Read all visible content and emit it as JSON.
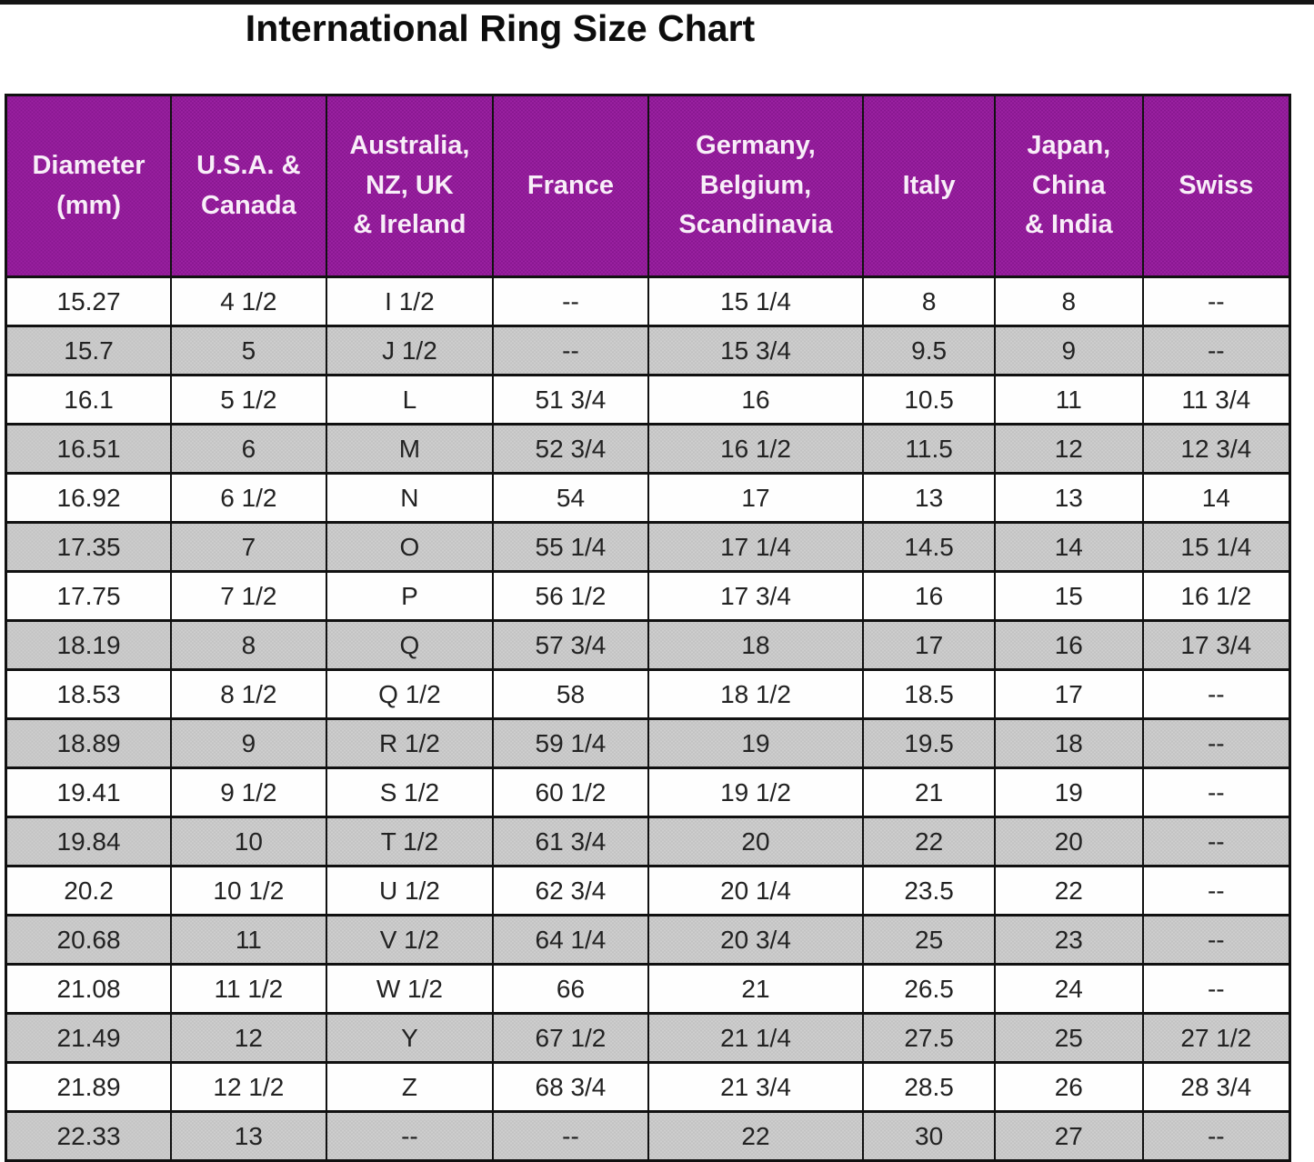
{
  "page": {
    "title": "International Ring Size Chart"
  },
  "colors": {
    "header_background": "#91199a",
    "header_text": "#f8eef8",
    "striped_row": "#c8c8c8",
    "plain_row": "#ffffff",
    "border": "#111111",
    "title_text": "#0d0d0d"
  },
  "table": {
    "columns": [
      {
        "label": "Diameter\n(mm)"
      },
      {
        "label": "U.S.A. &\nCanada"
      },
      {
        "label": "Australia,\nNZ, UK\n& Ireland"
      },
      {
        "label": "France"
      },
      {
        "label": "Germany,\nBelgium,\nScandinavia"
      },
      {
        "label": "Italy"
      },
      {
        "label": "Japan,\nChina\n& India"
      },
      {
        "label": "Swiss"
      }
    ],
    "rows": [
      [
        "15.27",
        "4 1/2",
        "I 1/2",
        "--",
        "15 1/4",
        "8",
        "8",
        "--"
      ],
      [
        "15.7",
        "5",
        "J 1/2",
        "--",
        "15 3/4",
        "9.5",
        "9",
        "--"
      ],
      [
        "16.1",
        "5 1/2",
        "L",
        "51 3/4",
        "16",
        "10.5",
        "11",
        "11 3/4"
      ],
      [
        "16.51",
        "6",
        "M",
        "52 3/4",
        "16 1/2",
        "11.5",
        "12",
        "12 3/4"
      ],
      [
        "16.92",
        "6 1/2",
        "N",
        "54",
        "17",
        "13",
        "13",
        "14"
      ],
      [
        "17.35",
        "7",
        "O",
        "55 1/4",
        "17 1/4",
        "14.5",
        "14",
        "15 1/4"
      ],
      [
        "17.75",
        "7 1/2",
        "P",
        "56 1/2",
        "17 3/4",
        "16",
        "15",
        "16 1/2"
      ],
      [
        "18.19",
        "8",
        "Q",
        "57 3/4",
        "18",
        "17",
        "16",
        "17 3/4"
      ],
      [
        "18.53",
        "8 1/2",
        "Q 1/2",
        "58",
        "18 1/2",
        "18.5",
        "17",
        "--"
      ],
      [
        "18.89",
        "9",
        "R 1/2",
        "59 1/4",
        "19",
        "19.5",
        "18",
        "--"
      ],
      [
        "19.41",
        "9 1/2",
        "S 1/2",
        "60 1/2",
        "19 1/2",
        "21",
        "19",
        "--"
      ],
      [
        "19.84",
        "10",
        "T 1/2",
        "61 3/4",
        "20",
        "22",
        "20",
        "--"
      ],
      [
        "20.2",
        "10 1/2",
        "U 1/2",
        "62 3/4",
        "20 1/4",
        "23.5",
        "22",
        "--"
      ],
      [
        "20.68",
        "11",
        "V 1/2",
        "64 1/4",
        "20 3/4",
        "25",
        "23",
        "--"
      ],
      [
        "21.08",
        "11 1/2",
        "W 1/2",
        "66",
        "21",
        "26.5",
        "24",
        "--"
      ],
      [
        "21.49",
        "12",
        "Y",
        "67 1/2",
        "21 1/4",
        "27.5",
        "25",
        "27 1/2"
      ],
      [
        "21.89",
        "12 1/2",
        "Z",
        "68 3/4",
        "21 3/4",
        "28.5",
        "26",
        "28 3/4"
      ],
      [
        "22.33",
        "13",
        "--",
        "--",
        "22",
        "30",
        "27",
        "--"
      ]
    ]
  }
}
